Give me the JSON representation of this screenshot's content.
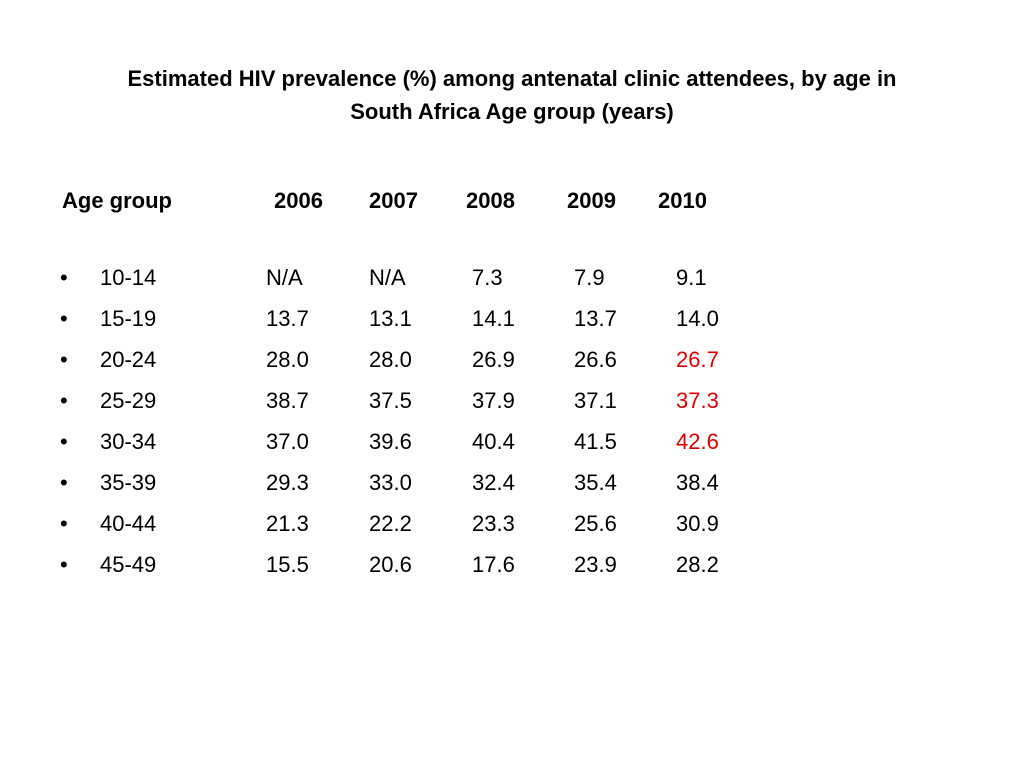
{
  "slide": {
    "title_line1": "Estimated HIV prevalence (%) among antenatal clinic attendees, by age in",
    "title_line2": "South Africa  Age group (years)"
  },
  "table": {
    "bullet": "•",
    "header": {
      "age_group": "Age group",
      "years": [
        "2006",
        "2007",
        "2008",
        "2009",
        "2010"
      ]
    },
    "rows": [
      {
        "age": "10-14",
        "values": [
          "N/A",
          "N/A",
          "7.3",
          "7.9",
          "9.1"
        ]
      },
      {
        "age": "15-19",
        "values": [
          "13.7",
          "13.1",
          "14.1",
          "13.7",
          "14.0"
        ]
      },
      {
        "age": "20-24",
        "values": [
          "28.0",
          "28.0",
          "26.9",
          "26.6",
          "26.7"
        ]
      },
      {
        "age": "25-29",
        "values": [
          "38.7",
          "37.5",
          "37.9",
          "37.1",
          "37.3"
        ]
      },
      {
        "age": "30-34",
        "values": [
          "37.0",
          "39.6",
          "40.4",
          "41.5",
          "42.6"
        ]
      },
      {
        "age": "35-39",
        "values": [
          "29.3",
          "33.0",
          "32.4",
          "35.4",
          "38.4"
        ]
      },
      {
        "age": "40-44",
        "values": [
          "21.3",
          "22.2",
          "23.3",
          "25.6",
          "30.9"
        ]
      },
      {
        "age": "45-49",
        "values": [
          "15.5",
          "20.6",
          "17.6",
          "23.9",
          "28.2"
        ]
      }
    ],
    "highlight_color": "#e00000"
  }
}
